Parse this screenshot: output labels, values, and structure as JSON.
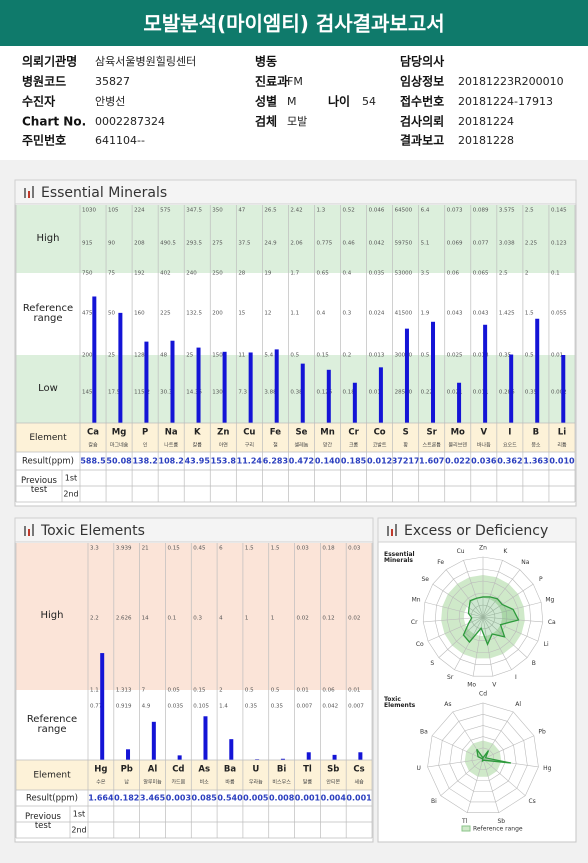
{
  "header": {
    "title": "모발분석(마이엠티) 검사결과보고서"
  },
  "info": {
    "rows": [
      [
        {
          "label": "의뢰기관명",
          "value": "삼육서울병원힐링센터"
        },
        {
          "label": "병동"
        },
        {
          "label": "담당의사"
        }
      ],
      [
        {
          "label": "병원코드",
          "value": "35827"
        },
        {
          "label": "진료과",
          "value": "FM"
        },
        {
          "label": "임상정보",
          "value": "20181223R200010"
        }
      ],
      [
        {
          "label": "수진자",
          "value": "안병선"
        },
        {
          "label": "성별",
          "value": "M"
        },
        {
          "label": "나이",
          "value": "54"
        },
        {
          "label": "접수번호",
          "value": "20181224-17913"
        }
      ],
      [
        {
          "label": "Chart No.",
          "value": "0002287324"
        },
        {
          "label": "검체",
          "value": "모발"
        },
        {
          "label": "검사의뢰",
          "value": "20181224"
        }
      ],
      [
        {
          "label": "주민번호",
          "value": "641104--"
        },
        {
          "label": "결과보고",
          "value": "20181228"
        }
      ]
    ]
  },
  "essential": {
    "title": "Essential Minerals",
    "bands": [
      "High",
      "Reference range",
      "Low"
    ],
    "element_header": "Element",
    "result_header": "Result(ppm)",
    "previous_header": "Previous test",
    "previous_rows": [
      "1st",
      "2nd"
    ],
    "elements": [
      {
        "symbol": "Ca",
        "name": "칼슘",
        "levels": [
          1030,
          915,
          750,
          475,
          200,
          145
        ],
        "result": "588.5"
      },
      {
        "symbol": "Mg",
        "name": "마그네슘",
        "levels": [
          105,
          90,
          75,
          50,
          25,
          17.5
        ],
        "result": "50.08"
      },
      {
        "symbol": "P",
        "name": "인",
        "levels": [
          224,
          208,
          192,
          160,
          128,
          115.2
        ],
        "result": "138.2"
      },
      {
        "symbol": "Na",
        "name": "나트륨",
        "levels": [
          575,
          490.5,
          402,
          225,
          48,
          30.3
        ],
        "result": "108.2"
      },
      {
        "symbol": "K",
        "name": "칼륨",
        "levels": [
          347.5,
          293.5,
          240,
          132.5,
          25,
          14.35
        ],
        "result": "43.95"
      },
      {
        "symbol": "Zn",
        "name": "아연",
        "levels": [
          350,
          275,
          250,
          200,
          150,
          130
        ],
        "result": "153.8"
      },
      {
        "symbol": "Cu",
        "name": "구리",
        "levels": [
          47,
          37.5,
          28,
          15,
          11,
          7.3
        ],
        "result": "11.24"
      },
      {
        "symbol": "Fe",
        "name": "철",
        "levels": [
          26.5,
          24.9,
          19,
          12,
          5.4,
          3.88
        ],
        "result": "6.283"
      },
      {
        "symbol": "Se",
        "name": "셀레늄",
        "levels": [
          2.42,
          2.06,
          1.7,
          1.1,
          0.5,
          0.38
        ],
        "result": "0.472"
      },
      {
        "symbol": "Mn",
        "name": "망간",
        "levels": [
          1.3,
          0.775,
          0.65,
          0.4,
          0.15,
          0.125
        ],
        "result": "0.140"
      },
      {
        "symbol": "Cr",
        "name": "크롬",
        "levels": [
          0.52,
          0.46,
          0.4,
          0.3,
          0.2,
          0.18
        ],
        "result": "0.185"
      },
      {
        "symbol": "Co",
        "name": "코발트",
        "levels": [
          0.046,
          0.042,
          0.035,
          0.024,
          0.013,
          0.01
        ],
        "result": "0.012"
      },
      {
        "symbol": "S",
        "name": "황",
        "levels": [
          64500,
          59750,
          53000,
          41500,
          30000,
          28550
        ],
        "result": "37217"
      },
      {
        "symbol": "Sr",
        "name": "스트론튬",
        "levels": [
          6.4,
          5.1,
          3.5,
          1.9,
          0.5,
          0.22
        ],
        "result": "1.607"
      },
      {
        "symbol": "Mo",
        "name": "몰리브덴",
        "levels": [
          0.073,
          0.069,
          0.06,
          0.043,
          0.025,
          0.021
        ],
        "result": "0.022"
      },
      {
        "symbol": "V",
        "name": "바나듐",
        "levels": [
          0.089,
          0.077,
          0.065,
          0.043,
          0.018,
          0.011
        ],
        "result": "0.036"
      },
      {
        "symbol": "I",
        "name": "요오드",
        "levels": [
          3.575,
          3.038,
          2.5,
          1.425,
          0.35,
          0.286
        ],
        "result": "0.362"
      },
      {
        "symbol": "B",
        "name": "붕소",
        "levels": [
          2.5,
          2.25,
          2,
          1.5,
          0.5,
          0.35
        ],
        "result": "1.363"
      },
      {
        "symbol": "Li",
        "name": "리튬",
        "levels": [
          0.145,
          0.123,
          0.1,
          0.055,
          0.01,
          0.002
        ],
        "result": "0.010"
      }
    ]
  },
  "toxic": {
    "title": "Toxic Elements",
    "bands": [
      "High",
      "Reference range"
    ],
    "element_header": "Element",
    "result_header": "Result(ppm)",
    "previous_header": "Previous test",
    "previous_rows": [
      "1st",
      "2nd"
    ],
    "elements": [
      {
        "symbol": "Hg",
        "name": "수은",
        "levels": [
          3.3,
          2.2,
          1.1,
          0.77
        ],
        "result": "1.664"
      },
      {
        "symbol": "Pb",
        "name": "납",
        "levels": [
          3.939,
          2.626,
          1.313,
          0.919
        ],
        "result": "0.182"
      },
      {
        "symbol": "Al",
        "name": "알루미늄",
        "levels": [
          21,
          14,
          7,
          4.9
        ],
        "result": "3.465"
      },
      {
        "symbol": "Cd",
        "name": "카드뮴",
        "levels": [
          0.15,
          0.1,
          0.05,
          0.035
        ],
        "result": "0.003"
      },
      {
        "symbol": "As",
        "name": "비소",
        "levels": [
          0.45,
          0.3,
          0.15,
          0.105
        ],
        "result": "0.085"
      },
      {
        "symbol": "Ba",
        "name": "바륨",
        "levels": [
          6,
          4,
          2,
          1.4
        ],
        "result": "0.540"
      },
      {
        "symbol": "U",
        "name": "우라늄",
        "levels": [
          1.5,
          1,
          0.5,
          0.35
        ],
        "result": "0.005"
      },
      {
        "symbol": "Bi",
        "name": "비스무스",
        "levels": [
          1.5,
          1,
          0.5,
          0.35
        ],
        "result": "0.008"
      },
      {
        "symbol": "Tl",
        "name": "탈륨",
        "levels": [
          0.03,
          0.02,
          0.01,
          0.007
        ],
        "result": "0.001"
      },
      {
        "symbol": "Sb",
        "name": "안티몬",
        "levels": [
          0.18,
          0.12,
          0.06,
          0.042
        ],
        "result": "0.004"
      },
      {
        "symbol": "Cs",
        "name": "세슘",
        "levels": [
          0.03,
          0.02,
          0.01,
          0.007
        ],
        "result": "0.001"
      }
    ]
  },
  "excess": {
    "title": "Excess or Deficiency",
    "essential_label": "Essential Minerals",
    "toxic_label": "Toxic Elements",
    "legend": "Reference range"
  }
}
